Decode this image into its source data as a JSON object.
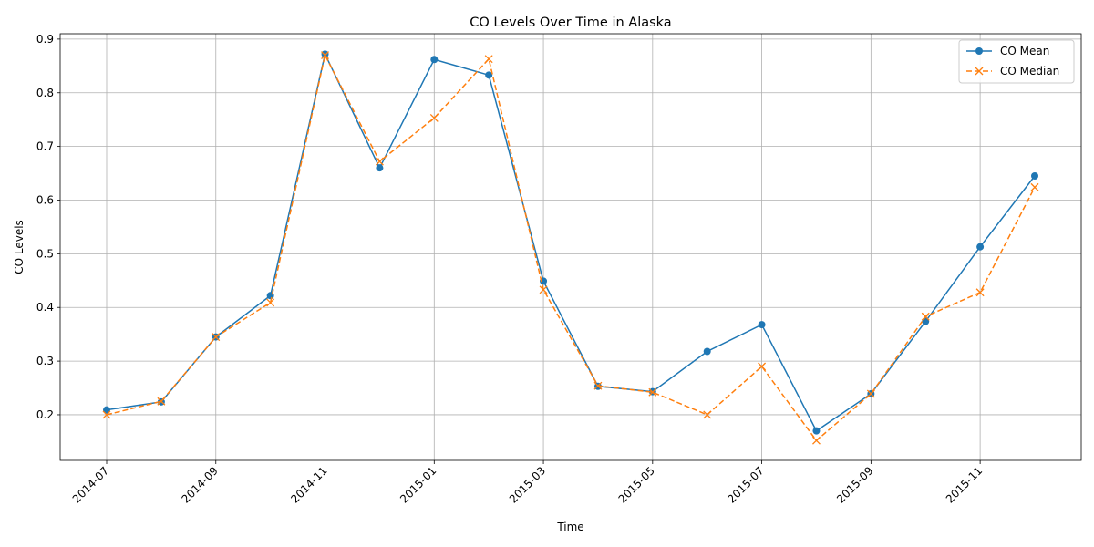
{
  "chart_data": {
    "type": "line",
    "title": "CO Levels Over Time in Alaska",
    "xlabel": "Time",
    "ylabel": "CO Levels",
    "x": [
      "2014-07",
      "2014-08",
      "2014-09",
      "2014-10",
      "2014-11",
      "2014-12",
      "2015-01",
      "2015-02",
      "2015-03",
      "2015-04",
      "2015-05",
      "2015-06",
      "2015-07",
      "2015-08",
      "2015-09",
      "2015-10",
      "2015-11",
      "2015-12"
    ],
    "x_ticks": [
      "2014-07",
      "2014-09",
      "2014-11",
      "2015-01",
      "2015-03",
      "2015-05",
      "2015-07",
      "2015-09",
      "2015-11"
    ],
    "y_ticks": [
      "0.2",
      "0.3",
      "0.4",
      "0.5",
      "0.6",
      "0.7",
      "0.8",
      "0.9"
    ],
    "ylim": [
      0.115,
      0.91
    ],
    "grid": true,
    "legend_position": "top-right",
    "series": [
      {
        "name": "CO Mean",
        "color": "#1f77b4",
        "line_style": "solid",
        "marker": "circle",
        "values": [
          0.209,
          0.224,
          0.345,
          0.422,
          0.872,
          0.66,
          0.862,
          0.833,
          0.449,
          0.253,
          0.243,
          0.318,
          0.368,
          0.17,
          0.239,
          0.374,
          0.513,
          0.645
        ]
      },
      {
        "name": "CO Median",
        "color": "#ff7f0e",
        "line_style": "dashed",
        "marker": "x",
        "values": [
          0.2,
          0.225,
          0.345,
          0.409,
          0.87,
          0.672,
          0.753,
          0.863,
          0.433,
          0.254,
          0.242,
          0.2,
          0.29,
          0.152,
          0.239,
          0.383,
          0.428,
          0.624
        ]
      }
    ]
  }
}
